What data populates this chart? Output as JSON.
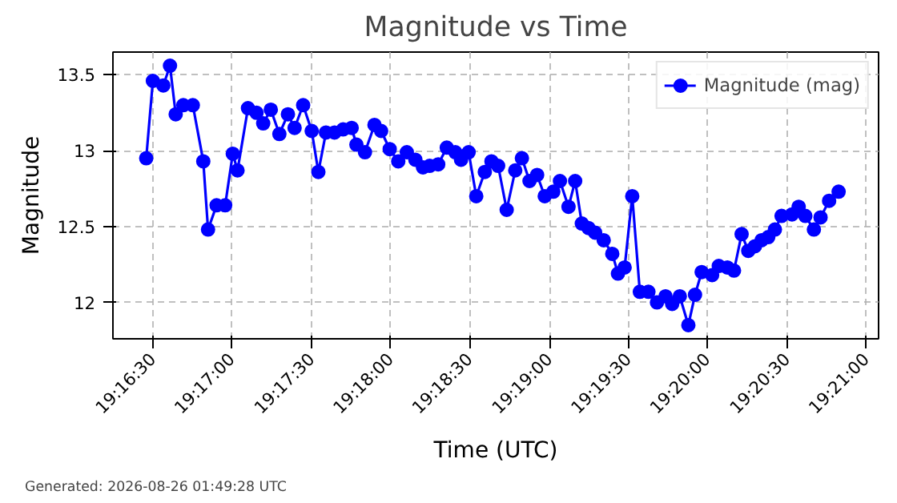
{
  "chart_data": {
    "type": "line",
    "title": "Magnitude vs Time",
    "xlabel": "Time (UTC)",
    "ylabel": "Magnitude",
    "annotations": [
      "Generated: 2026-08-26 01:49:28 UTC"
    ],
    "x": [
      19.2743,
      19.275,
      19.2761,
      19.2768,
      19.2774,
      19.2782,
      19.2792,
      19.2803,
      19.2808,
      19.2817,
      19.2826,
      19.2834,
      19.2839,
      19.285,
      19.2859,
      19.2866,
      19.2874,
      19.2883,
      19.2892,
      19.2899,
      19.2908,
      19.2917,
      19.2924,
      19.2932,
      19.2941,
      19.295,
      19.2959,
      19.2964,
      19.2973,
      19.2983,
      19.299,
      19.2999,
      19.3008,
      19.3017,
      19.3026,
      19.3034,
      19.3041,
      19.305,
      19.3059,
      19.3068,
      19.3074,
      19.3082,
      19.309,
      19.3099,
      19.3106,
      19.3113,
      19.3122,
      19.3131,
      19.3138,
      19.3146,
      19.3154,
      19.3162,
      19.3171,
      19.3178,
      19.3187,
      19.3194,
      19.3201,
      19.3208,
      19.3215,
      19.3224,
      19.3233,
      19.3239,
      19.3246,
      19.3254,
      19.3262,
      19.3271,
      19.328,
      19.3289,
      19.3296,
      19.3304,
      19.3313,
      19.332,
      19.3327,
      19.3338,
      19.3345,
      19.3354,
      19.3361,
      19.3369,
      19.3376,
      19.3383,
      19.339,
      19.3397,
      19.3404,
      19.3411,
      19.3422,
      19.3429,
      19.3436,
      19.3445,
      19.3452,
      19.3461,
      19.3471
    ],
    "series": [
      {
        "name": "Magnitude (mag)",
        "color": "#0000ff",
        "values": [
          12.95,
          13.46,
          13.43,
          13.56,
          13.24,
          13.3,
          13.3,
          12.93,
          12.48,
          12.64,
          12.64,
          12.98,
          12.87,
          13.28,
          13.25,
          13.18,
          13.27,
          13.11,
          13.24,
          13.15,
          13.3,
          13.13,
          12.86,
          13.12,
          13.12,
          13.14,
          13.15,
          13.04,
          12.99,
          13.17,
          13.13,
          13.01,
          12.93,
          12.99,
          12.94,
          12.89,
          12.9,
          12.91,
          13.02,
          12.99,
          12.94,
          12.99,
          12.7,
          12.86,
          12.93,
          12.9,
          12.61,
          12.87,
          12.95,
          12.8,
          12.84,
          12.7,
          12.73,
          12.8,
          12.63,
          12.8,
          12.52,
          12.49,
          12.46,
          12.41,
          12.32,
          12.19,
          12.23,
          12.7,
          12.07,
          12.07,
          12.0,
          12.04,
          11.99,
          12.04,
          11.85,
          12.05,
          12.2,
          12.18,
          12.24,
          12.23,
          12.21,
          12.45,
          12.34,
          12.37,
          12.41,
          12.43,
          12.48,
          12.57,
          12.58,
          12.63,
          12.57,
          12.48,
          12.56,
          12.67,
          12.73
        ]
      }
    ],
    "xlim": [
      19.2708,
      19.3513
    ],
    "ylim": [
      11.76,
      13.65
    ],
    "xticks": [
      {
        "value": 19.275,
        "label": "19:16:30"
      },
      {
        "value": 19.2833,
        "label": "19:17:00"
      },
      {
        "value": 19.2917,
        "label": "19:17:30"
      },
      {
        "value": 19.3,
        "label": "19:18:00"
      },
      {
        "value": 19.3083,
        "label": "19:18:30"
      },
      {
        "value": 19.3167,
        "label": "19:19:00"
      },
      {
        "value": 19.325,
        "label": "19:19:30"
      },
      {
        "value": 19.3333,
        "label": "19:20:00"
      },
      {
        "value": 19.3417,
        "label": "19:20:30"
      },
      {
        "value": 19.35,
        "label": "19:21:00"
      }
    ],
    "yticks": [
      12.0,
      12.5,
      13.0,
      13.5
    ],
    "grid": true,
    "legend": "top right",
    "marker": "circle",
    "line_style": "solid"
  }
}
